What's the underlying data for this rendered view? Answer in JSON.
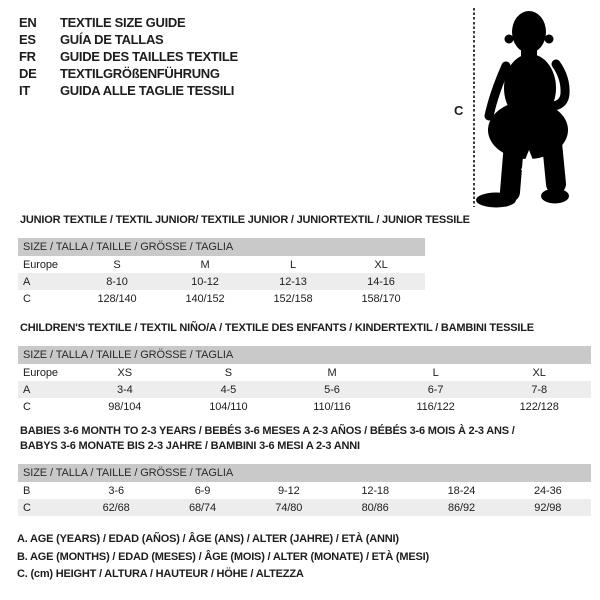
{
  "languages": {
    "items": [
      {
        "code": "EN",
        "title": "TEXTILE SIZE GUIDE"
      },
      {
        "code": "ES",
        "title": "GUÍA DE TALLAS"
      },
      {
        "code": "FR",
        "title": "GUIDE DES TAILLES TEXTILE"
      },
      {
        "code": "DE",
        "title": "TEXTILGRÖßENFÜHRUNG"
      },
      {
        "code": "IT",
        "title": "GUIDA ALLE TAGLIE TESSILI"
      }
    ]
  },
  "figure": {
    "icon": "baby-silhouette",
    "height_label": "C"
  },
  "tables": [
    {
      "title_lines": [
        "JUNIOR TEXTILE / TEXTIL JUNIOR/ TEXTILE JUNIOR / JUNIORTEXTIL / JUNIOR TESSILE"
      ],
      "size_bar": "SIZE / TALLA / TAILLE / GRÖSSE / TAGLIA",
      "rows": [
        {
          "label": "Europe",
          "values": [
            "S",
            "M",
            "L",
            "XL"
          ]
        },
        {
          "label": "A",
          "values": [
            "8-10",
            "10-12",
            "12-13",
            "14-16"
          ]
        },
        {
          "label": "C",
          "values": [
            "128/140",
            "140/152",
            "152/158",
            "158/170"
          ]
        }
      ],
      "shaded_rows": [
        1
      ]
    },
    {
      "title_lines": [
        "CHILDREN'S TEXTILE / TEXTIL NIÑO/A / TEXTILE DES ENFANTS / KINDERTEXTIL / BAMBINI TESSILE"
      ],
      "size_bar": "SIZE / TALLA / TAILLE / GRÖSSE / TAGLIA",
      "rows": [
        {
          "label": "Europe",
          "values": [
            "XS",
            "S",
            "M",
            "L",
            "XL"
          ]
        },
        {
          "label": "A",
          "values": [
            "3-4",
            "4-5",
            "5-6",
            "6-7",
            "7-8"
          ]
        },
        {
          "label": "C",
          "values": [
            "98/104",
            "104/110",
            "110/116",
            "116/122",
            "122/128"
          ]
        }
      ],
      "shaded_rows": [
        1
      ]
    },
    {
      "title_lines": [
        "BABIES 3-6 MONTH TO 2-3 YEARS / BEBÉS 3-6 MESES A 2-3 AÑOS / BÉBÉS 3-6 MOIS À 2-3 ANS /",
        "BABYS 3-6 MONATE BIS 2-3 JAHRE / BAMBINI 3-6 MESI A 2-3 ANNI"
      ],
      "size_bar": "SIZE / TALLA / TAILLE / GRÖSSE / TAGLIA",
      "rows": [
        {
          "label": "B",
          "values": [
            "3-6",
            "6-9",
            "9-12",
            "12-18",
            "18-24",
            "24-36"
          ]
        },
        {
          "label": "C",
          "values": [
            "62/68",
            "68/74",
            "74/80",
            "80/86",
            "86/92",
            "92/98"
          ]
        }
      ],
      "shaded_rows": [
        1
      ]
    }
  ],
  "legend": {
    "lines": [
      "A. AGE (YEARS) / EDAD (AÑOS) / ÂGE (ANS) / ALTER (JAHRE) / ETÀ (ANNI)",
      "B. AGE (MONTHS) / EDAD (MESES) / ÂGE (MOIS) / ALTER (MONATE) / ETÀ (MESI)",
      "C. (cm) HEIGHT / ALTURA / HAUTEUR / HÖHE / ALTEZZA"
    ]
  },
  "colors": {
    "size_bar_bg": "#c9c9c9",
    "shaded_row_bg": "#ededed",
    "text": "#1d1d1d",
    "silhouette": "#000000"
  }
}
